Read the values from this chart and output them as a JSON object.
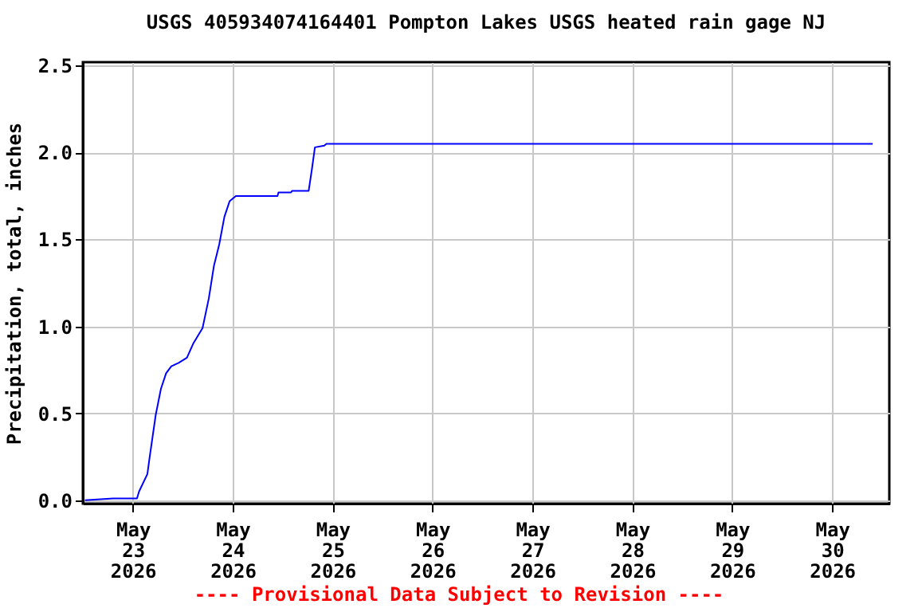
{
  "chart_data": {
    "type": "line",
    "title": "USGS 405934074164401 Pompton Lakes USGS heated rain gage NJ",
    "ylabel": "Precipitation, total, inches",
    "annotations": [
      "---- Provisional Data Subject to Revision ----"
    ],
    "x": [
      "2026-05-22T12:30",
      "2026-05-22T19:15",
      "2026-05-23T01:00",
      "2026-05-23T01:30",
      "2026-05-23T03:30",
      "2026-05-23T04:00",
      "2026-05-23T05:30",
      "2026-05-23T06:45",
      "2026-05-23T08:00",
      "2026-05-23T09:15",
      "2026-05-23T11:00",
      "2026-05-23T13:00",
      "2026-05-23T14:30",
      "2026-05-23T16:45",
      "2026-05-23T18:15",
      "2026-05-23T19:30",
      "2026-05-23T20:45",
      "2026-05-23T22:00",
      "2026-05-23T23:15",
      "2026-05-24T00:45",
      "2026-05-24T10:45",
      "2026-05-24T11:00",
      "2026-05-24T14:00",
      "2026-05-24T14:15",
      "2026-05-24T18:15",
      "2026-05-24T19:00",
      "2026-05-24T19:45",
      "2026-05-24T22:00",
      "2026-05-24T22:30",
      "2026-05-30T09:45"
    ],
    "series": [
      {
        "color": "#0000ff",
        "values": [
          0,
          0.01,
          0.01,
          0.05,
          0.15,
          0.24,
          0.49,
          0.64,
          0.73,
          0.77,
          0.79,
          0.82,
          0.9,
          0.99,
          1.16,
          1.35,
          1.47,
          1.63,
          1.72,
          1.75,
          1.75,
          1.77,
          1.77,
          1.78,
          1.78,
          1.9,
          2.03,
          2.04,
          2.05,
          2.05
        ]
      }
    ],
    "xlim": [
      "2026-05-22T12:00",
      "2026-05-30T13:45"
    ],
    "xticks": [
      {
        "value": "2026-05-23",
        "label": "May 23 2026"
      },
      {
        "value": "2026-05-24",
        "label": "May 24 2026"
      },
      {
        "value": "2026-05-25",
        "label": "May 25 2026"
      },
      {
        "value": "2026-05-26",
        "label": "May 26 2026"
      },
      {
        "value": "2026-05-27",
        "label": "May 27 2026"
      },
      {
        "value": "2026-05-28",
        "label": "May 28 2026"
      },
      {
        "value": "2026-05-29",
        "label": "May 29 2026"
      },
      {
        "value": "2026-05-30",
        "label": "May 30 2026"
      }
    ],
    "ylim": [
      -0.02,
      2.52
    ],
    "yticks": [
      {
        "value": 0,
        "label": "0.0"
      },
      {
        "value": 0.5,
        "label": "0.5"
      },
      {
        "value": 1,
        "label": "1.0"
      },
      {
        "value": 1.5,
        "label": "1.5"
      },
      {
        "value": 2,
        "label": "2.0"
      },
      {
        "value": 2.5,
        "label": "2.5"
      }
    ],
    "grid": true,
    "marker": "none",
    "line_style": "solid"
  }
}
